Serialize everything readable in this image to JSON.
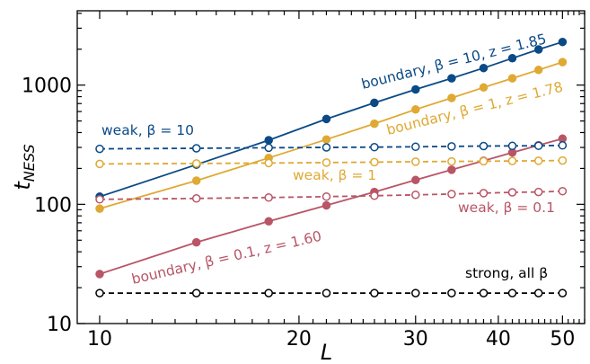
{
  "chart_data": {
    "type": "line",
    "xscale": "log",
    "yscale": "log",
    "xlim": [
      9.25,
      54
    ],
    "ylim": [
      10,
      4200
    ],
    "xticks": [
      10,
      20,
      30,
      40,
      50
    ],
    "xtick_labels": [
      "10",
      "20",
      "30",
      "40",
      "50"
    ],
    "yticks": [
      10,
      100,
      1000
    ],
    "ytick_labels": [
      "10",
      "100",
      "1000"
    ],
    "xlabel": "L",
    "ylabel": "t",
    "ylabel_sub": "NESS",
    "grid": false,
    "series": [
      {
        "name": "boundary, β = 10, z = 1.85",
        "color": "#0b4a86",
        "dash": "solid",
        "marker": "filled",
        "x": [
          10,
          14,
          18,
          22,
          26,
          30,
          34,
          38,
          42,
          46,
          50
        ],
        "y": [
          116,
          215,
          345,
          520,
          710,
          920,
          1140,
          1390,
          1680,
          1990,
          2300
        ]
      },
      {
        "name": "boundary, β = 1, z = 1.78",
        "color": "#dfa933",
        "dash": "solid",
        "marker": "filled",
        "x": [
          10,
          14,
          18,
          22,
          26,
          30,
          34,
          38,
          42,
          46,
          50
        ],
        "y": [
          92,
          158,
          245,
          350,
          475,
          625,
          780,
          955,
          1140,
          1340,
          1560
        ]
      },
      {
        "name": "boundary, β = 0.1, z = 1.60",
        "color": "#b85566",
        "dash": "solid",
        "marker": "filled",
        "x": [
          10,
          14,
          18,
          22,
          26,
          30,
          34,
          38,
          42,
          46,
          50
        ],
        "y": [
          26,
          48,
          72,
          98,
          127,
          160,
          195,
          232,
          272,
          313,
          355
        ]
      },
      {
        "name": "weak, β = 10",
        "color": "#0b4a86",
        "dash": "dashed",
        "marker": "open",
        "x": [
          10,
          14,
          18,
          22,
          26,
          30,
          34,
          38,
          42,
          46,
          50
        ],
        "y": [
          292,
          295,
          298,
          300,
          302,
          304,
          306,
          308,
          309,
          310,
          312
        ]
      },
      {
        "name": "weak, β = 1",
        "color": "#dfa933",
        "dash": "dashed",
        "marker": "open",
        "x": [
          10,
          14,
          18,
          22,
          26,
          30,
          34,
          38,
          42,
          46,
          50
        ],
        "y": [
          218,
          220,
          222,
          224,
          226,
          228,
          229,
          230,
          231,
          232,
          233
        ]
      },
      {
        "name": "weak, β = 0.1",
        "color": "#b85566",
        "dash": "dashed",
        "marker": "open",
        "x": [
          10,
          14,
          18,
          22,
          26,
          30,
          34,
          38,
          42,
          46,
          50
        ],
        "y": [
          110,
          112,
          114,
          116,
          118,
          120,
          122,
          124,
          126,
          127,
          129
        ]
      },
      {
        "name": "strong, all β",
        "color": "#000000",
        "dash": "dashed",
        "marker": "open",
        "x": [
          10,
          14,
          18,
          22,
          26,
          30,
          34,
          38,
          42,
          46,
          50
        ],
        "y": [
          18,
          18,
          18,
          18,
          18,
          18,
          18,
          18,
          18,
          18,
          18
        ]
      }
    ],
    "annotations": [
      {
        "id": "b10",
        "color": "#0b4a86",
        "text": "boundary, β = 10, z = 1.85"
      },
      {
        "id": "b1",
        "color": "#dfa933",
        "text": "boundary, β = 1, z = 1.78"
      },
      {
        "id": "b01",
        "color": "#b85566",
        "text": "boundary, β = 0.1, z = 1.60"
      },
      {
        "id": "w10",
        "color": "#0b4a86",
        "text": "weak, β = 10"
      },
      {
        "id": "w1",
        "color": "#dfa933",
        "text": "weak, β = 1"
      },
      {
        "id": "w01",
        "color": "#b85566",
        "text": "weak, β = 0.1"
      },
      {
        "id": "s",
        "color": "#000000",
        "text": "strong, all β"
      }
    ]
  }
}
